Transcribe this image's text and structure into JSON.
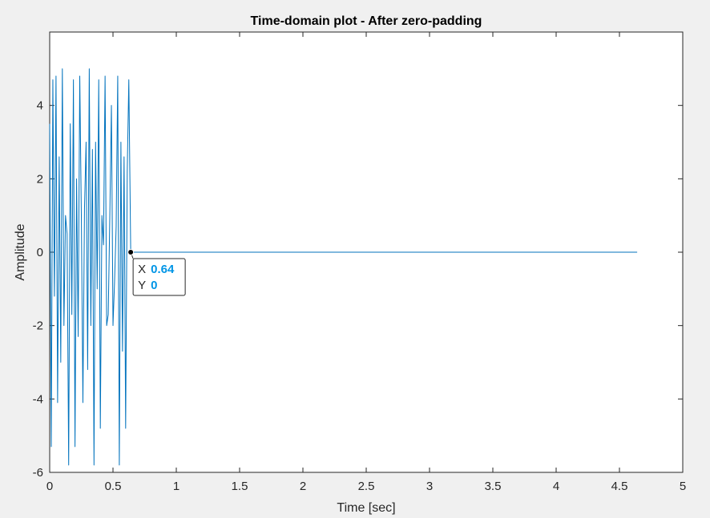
{
  "chart_data": {
    "type": "line",
    "title": "Time-domain plot - After zero-padding",
    "xlabel": "Time [sec]",
    "ylabel": "Amplitude",
    "xlim": [
      0,
      5
    ],
    "ylim": [
      -6,
      6
    ],
    "xticks": [
      "0",
      "0.5",
      "1",
      "1.5",
      "2",
      "2.5",
      "3",
      "3.5",
      "4",
      "4.5",
      "5"
    ],
    "yticks": [
      "-6",
      "-4",
      "-2",
      "0",
      "2",
      "4"
    ],
    "grid": false,
    "series": [
      {
        "color": "#0072BD",
        "x": [
          0.0,
          0.0125,
          0.025,
          0.0375,
          0.05,
          0.0625,
          0.075,
          0.0875,
          0.1,
          0.1125,
          0.125,
          0.1375,
          0.15,
          0.1625,
          0.175,
          0.1875,
          0.2,
          0.2125,
          0.225,
          0.2375,
          0.25,
          0.2625,
          0.275,
          0.2875,
          0.3,
          0.3125,
          0.325,
          0.3375,
          0.35,
          0.3625,
          0.375,
          0.3875,
          0.4,
          0.4125,
          0.425,
          0.4375,
          0.45,
          0.4625,
          0.475,
          0.4875,
          0.5,
          0.5125,
          0.525,
          0.5375,
          0.55,
          0.5625,
          0.575,
          0.5875,
          0.6,
          0.6125,
          0.625,
          0.64,
          4.64
        ],
        "y": [
          3.5,
          -5.3,
          4.7,
          -1.2,
          4.8,
          -4.1,
          2.6,
          -3.0,
          5.0,
          -2.0,
          1.0,
          0.5,
          -5.8,
          3.5,
          -1.7,
          4.7,
          -5.3,
          2.0,
          -2.3,
          4.8,
          1.0,
          -4.1,
          1.2,
          3.0,
          -3.2,
          5.0,
          -2.0,
          2.8,
          -5.8,
          3.0,
          -1.0,
          4.7,
          -4.8,
          1.0,
          0.2,
          4.8,
          -2.0,
          -1.7,
          1.0,
          4.0,
          -2.0,
          -0.8,
          0.7,
          4.8,
          -5.8,
          3.0,
          -2.7,
          2.6,
          -4.8,
          2.2,
          4.7,
          0.0,
          0.0
        ]
      }
    ],
    "datatip": {
      "x_key": "X",
      "x_value": "0.64",
      "y_key": "Y",
      "y_value": "0",
      "value_color": "#0095E6"
    }
  }
}
